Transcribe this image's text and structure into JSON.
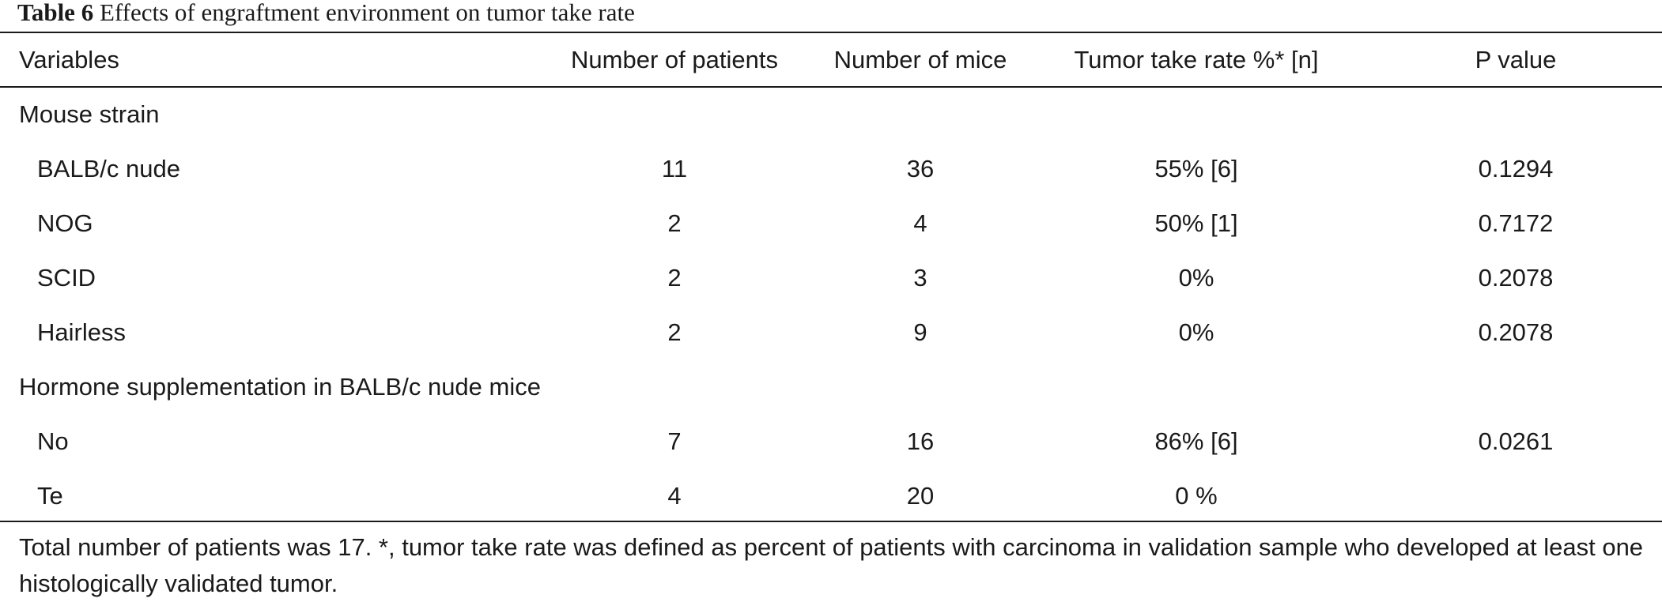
{
  "table": {
    "caption_label": "Table 6",
    "caption_text": "Effects of engraftment environment on tumor take rate",
    "headers": {
      "variables": "Variables",
      "patients": "Number of patients",
      "mice": "Number of mice",
      "take_rate": "Tumor take rate %* [n]",
      "p_value": "P value"
    },
    "sections": [
      {
        "title": "Mouse strain",
        "rows": [
          {
            "variable": "BALB/c nude",
            "patients": "11",
            "mice": "36",
            "take_rate": "55% [6]",
            "p_value": "0.1294"
          },
          {
            "variable": "NOG",
            "patients": "2",
            "mice": "4",
            "take_rate": "50% [1]",
            "p_value": "0.7172"
          },
          {
            "variable": "SCID",
            "patients": "2",
            "mice": "3",
            "take_rate": "0%",
            "p_value": "0.2078"
          },
          {
            "variable": "Hairless",
            "patients": "2",
            "mice": "9",
            "take_rate": "0%",
            "p_value": "0.2078"
          }
        ]
      },
      {
        "title": "Hormone supplementation in BALB/c nude mice",
        "rows": [
          {
            "variable": "No",
            "patients": "7",
            "mice": "16",
            "take_rate": "86% [6]",
            "p_value": "0.0261"
          },
          {
            "variable": "Te",
            "patients": "4",
            "mice": "20",
            "take_rate": "0 %",
            "p_value": ""
          }
        ]
      }
    ],
    "footnote": "Total number of patients was 17. *, tumor take rate was defined as percent of patients with carcinoma in validation sample who developed at least one histologically validated tumor."
  }
}
